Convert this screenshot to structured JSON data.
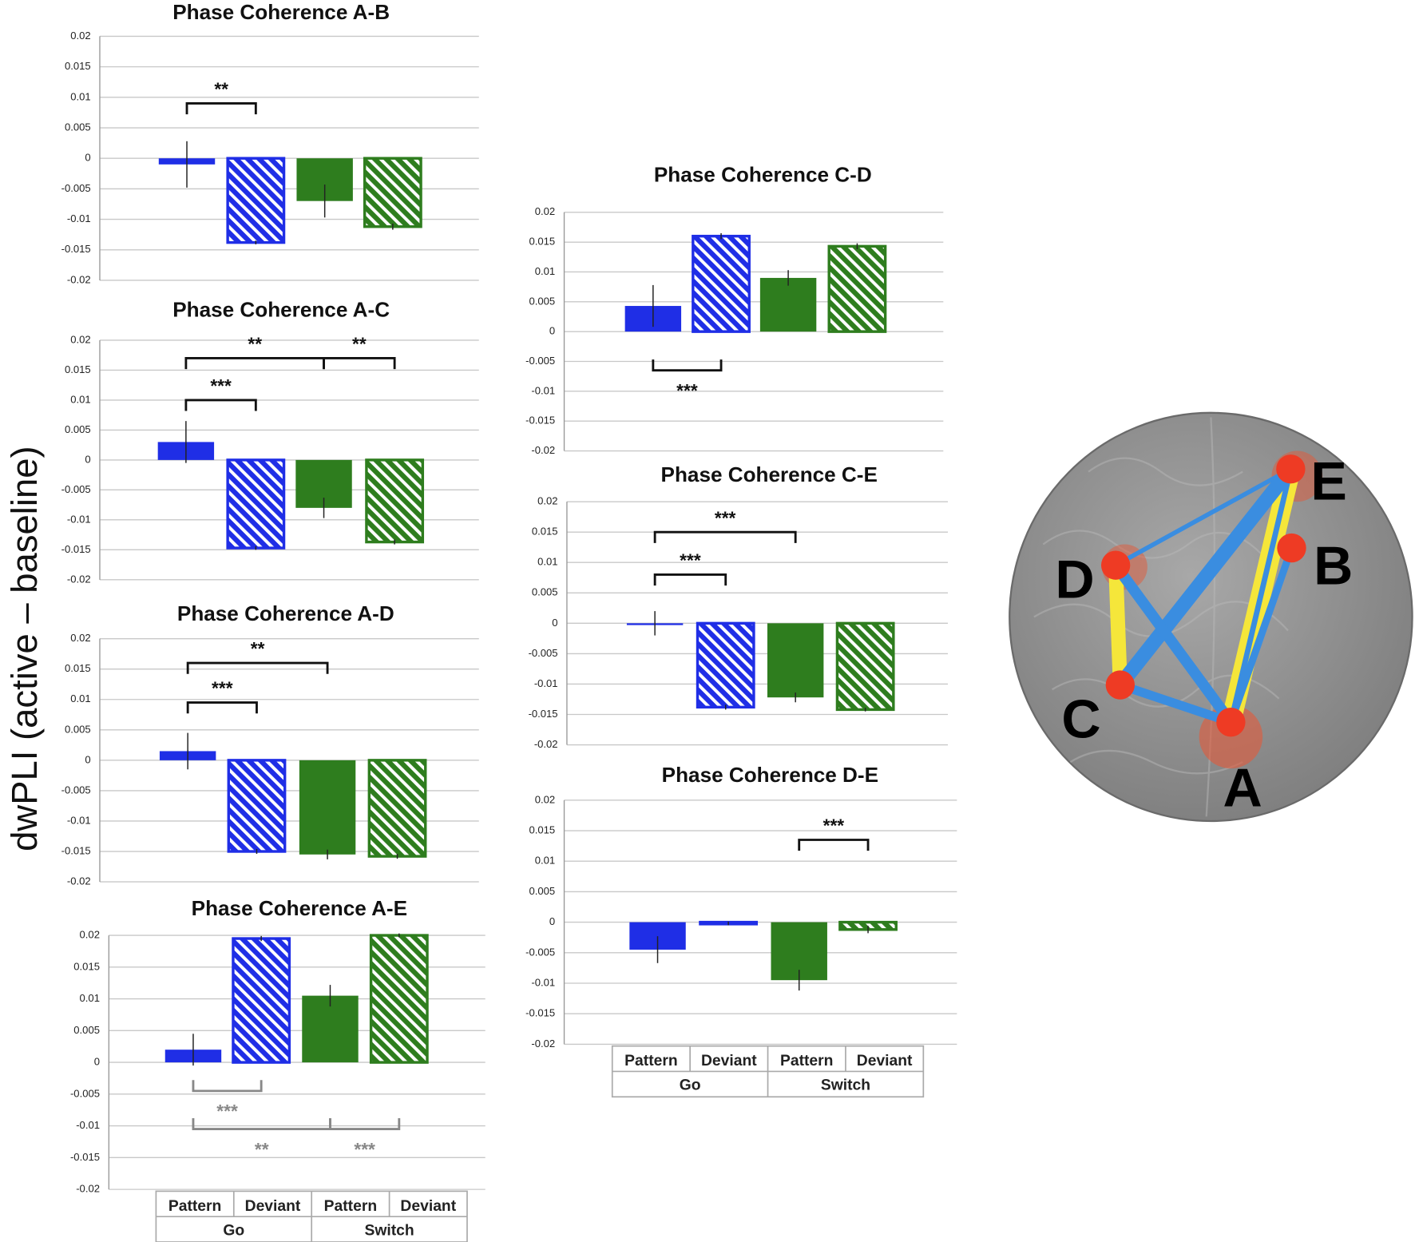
{
  "y_label": "dwPLI (active – baseline)",
  "chart_data": [
    {
      "type": "bar",
      "title": "Phase Coherence A-B",
      "categories": [
        null,
        null,
        null,
        null
      ],
      "values": [
        -0.001,
        -0.0138,
        -0.007,
        -0.0112
      ],
      "errors": [
        0.0038,
        0.0003,
        0.0027,
        0.0005
      ],
      "colors": [
        "#1f2ee6",
        "#1f2ee6",
        "#2e7d1e",
        "#2e7d1e"
      ],
      "hatched": [
        false,
        true,
        false,
        true
      ],
      "ylim": [
        -0.02,
        0.02
      ],
      "yticks": [
        0.02,
        0.015,
        0.01,
        0.005,
        0,
        -0.005,
        -0.01,
        -0.015,
        -0.02
      ],
      "grid": true,
      "annotations": [
        {
          "label": "**",
          "from": 0,
          "to": 1,
          "y": 0.009
        }
      ]
    },
    {
      "type": "bar",
      "title": "Phase Coherence A-C",
      "categories": [
        null,
        null,
        null,
        null
      ],
      "values": [
        0.003,
        -0.0147,
        -0.008,
        -0.0137
      ],
      "errors": [
        0.0035,
        0.0003,
        0.0017,
        0.0004
      ],
      "colors": [
        "#1f2ee6",
        "#1f2ee6",
        "#2e7d1e",
        "#2e7d1e"
      ],
      "hatched": [
        false,
        true,
        false,
        true
      ],
      "ylim": [
        -0.02,
        0.02
      ],
      "yticks": [
        0.02,
        0.015,
        0.01,
        0.005,
        0,
        -0.005,
        -0.01,
        -0.015,
        -0.02
      ],
      "grid": true,
      "annotations": [
        {
          "label": "***",
          "from": 0,
          "to": 1,
          "y": 0.01
        },
        {
          "label": "**",
          "from": 0,
          "to": 2,
          "y": 0.017
        },
        {
          "label": "**",
          "from": 2,
          "to": 3,
          "y": 0.017
        }
      ]
    },
    {
      "type": "bar",
      "title": "Phase Coherence A-D",
      "categories": [
        null,
        null,
        null,
        null
      ],
      "values": [
        0.0015,
        -0.015,
        -0.0155,
        -0.0158
      ],
      "errors": [
        0.003,
        0.0004,
        0.0008,
        0.0004
      ],
      "colors": [
        "#1f2ee6",
        "#1f2ee6",
        "#2e7d1e",
        "#2e7d1e"
      ],
      "hatched": [
        false,
        true,
        false,
        true
      ],
      "ylim": [
        -0.02,
        0.02
      ],
      "yticks": [
        0.02,
        0.015,
        0.01,
        0.005,
        0,
        -0.005,
        -0.01,
        -0.015,
        -0.02
      ],
      "grid": true,
      "annotations": [
        {
          "label": "***",
          "from": 0,
          "to": 1,
          "y": 0.0095
        },
        {
          "label": "**",
          "from": 0,
          "to": 2,
          "y": 0.016
        }
      ]
    },
    {
      "type": "bar",
      "title": "Phase Coherence A-E",
      "categories": [
        "Pattern",
        "Deviant",
        "Pattern",
        "Deviant"
      ],
      "groups": [
        "Go",
        "Switch"
      ],
      "values": [
        0.002,
        0.0195,
        0.0105,
        0.02
      ],
      "errors": [
        0.0025,
        0.0004,
        0.0017,
        0.0003
      ],
      "colors": [
        "#1f2ee6",
        "#1f2ee6",
        "#2e7d1e",
        "#2e7d1e"
      ],
      "hatched": [
        false,
        true,
        false,
        true
      ],
      "ylim": [
        -0.02,
        0.02
      ],
      "yticks": [
        0.02,
        0.015,
        0.01,
        0.005,
        0,
        -0.005,
        -0.01,
        -0.015,
        -0.02
      ],
      "grid": true,
      "annotations": [
        {
          "label": "***",
          "from": 0,
          "to": 1,
          "y": -0.0045,
          "color": "#888888"
        },
        {
          "label": "**",
          "from": 0,
          "to": 2,
          "y": -0.0105,
          "color": "#888888"
        },
        {
          "label": "***",
          "from": 2,
          "to": 3,
          "y": -0.0105,
          "color": "#888888"
        }
      ]
    },
    {
      "type": "bar",
      "title": "Phase Coherence C-D",
      "categories": [
        null,
        null,
        null,
        null
      ],
      "values": [
        0.0043,
        0.016,
        0.009,
        0.0143
      ],
      "errors": [
        0.0035,
        0.0005,
        0.0013,
        0.0005
      ],
      "colors": [
        "#1f2ee6",
        "#1f2ee6",
        "#2e7d1e",
        "#2e7d1e"
      ],
      "hatched": [
        false,
        true,
        false,
        true
      ],
      "ylim": [
        -0.02,
        0.02
      ],
      "yticks": [
        0.02,
        0.015,
        0.01,
        0.005,
        0,
        -0.005,
        -0.01,
        -0.015,
        -0.02
      ],
      "grid": true,
      "annotations": [
        {
          "label": "***",
          "from": 0,
          "to": 1,
          "y": -0.0065
        }
      ]
    },
    {
      "type": "bar",
      "title": "Phase Coherence C-E",
      "categories": [
        null,
        null,
        null,
        null
      ],
      "values": [
        0,
        -0.0138,
        -0.0122,
        -0.0142
      ],
      "errors": [
        0.002,
        0.0004,
        0.0008,
        0.0003
      ],
      "colors": [
        "#1f2ee6",
        "#1f2ee6",
        "#2e7d1e",
        "#2e7d1e"
      ],
      "hatched": [
        false,
        true,
        false,
        true
      ],
      "ylim": [
        -0.02,
        0.02
      ],
      "yticks": [
        0.02,
        0.015,
        0.01,
        0.005,
        0,
        -0.005,
        -0.01,
        -0.015,
        -0.02
      ],
      "grid": true,
      "annotations": [
        {
          "label": "***",
          "from": 0,
          "to": 1,
          "y": 0.008
        },
        {
          "label": "***",
          "from": 0,
          "to": 2,
          "y": 0.015
        }
      ]
    },
    {
      "type": "bar",
      "title": "Phase Coherence D-E",
      "categories": [
        "Pattern",
        "Deviant",
        "Pattern",
        "Deviant"
      ],
      "groups": [
        "Go",
        "Switch"
      ],
      "values": [
        -0.0045,
        -0.0002,
        -0.0095,
        -0.0012
      ],
      "errors": [
        0.0022,
        0.0003,
        0.0017,
        0.0006
      ],
      "colors": [
        "#1f2ee6",
        "#1f2ee6",
        "#2e7d1e",
        "#2e7d1e"
      ],
      "hatched": [
        false,
        true,
        false,
        true
      ],
      "ylim": [
        -0.02,
        0.02
      ],
      "yticks": [
        0.02,
        0.015,
        0.01,
        0.005,
        0,
        -0.005,
        -0.01,
        -0.015,
        -0.02
      ],
      "grid": true,
      "annotations": [
        {
          "label": "***",
          "from": 2,
          "to": 3,
          "y": 0.0135
        }
      ]
    }
  ],
  "diagram": {
    "nodes": [
      {
        "label": "A"
      },
      {
        "label": "B"
      },
      {
        "label": "C"
      },
      {
        "label": "D"
      },
      {
        "label": "E"
      }
    ]
  }
}
